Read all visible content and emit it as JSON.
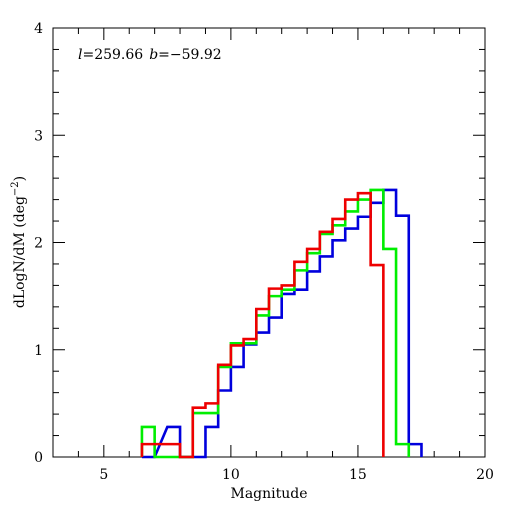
{
  "chart_data": {
    "type": "line",
    "style": "step histogram",
    "annotation": {
      "l_symbol": "l",
      "l_value": "=259.66",
      "b_symbol": "b",
      "b_value": "=−59.92"
    },
    "xlabel": "Magnitude",
    "ylabel_prefix": "dLogN/dM (deg",
    "ylabel_exponent": "−2",
    "ylabel_suffix": ")",
    "xlim": [
      3,
      20
    ],
    "ylim": [
      0,
      4
    ],
    "x_ticks": [
      5,
      10,
      15,
      20
    ],
    "x_tick_labels": [
      "5",
      "10",
      "15",
      "20"
    ],
    "y_ticks": [
      0,
      1,
      2,
      3,
      4
    ],
    "y_tick_labels": [
      "0",
      "1",
      "2",
      "3",
      "4"
    ],
    "grid": false,
    "legend": "none",
    "bin_width": 0.5,
    "series": [
      {
        "color": "#0000dd",
        "bin_starts": [
          6.5,
          7.5,
          8.0,
          8.5,
          9.0,
          9.5,
          10.0,
          10.5,
          11.0,
          11.5,
          12.0,
          12.5,
          13.0,
          13.5,
          14.0,
          14.5,
          15.0,
          15.5,
          16.0,
          16.5,
          17.0
        ],
        "values": [
          0.0,
          0.28,
          0.0,
          0.0,
          0.28,
          0.62,
          0.84,
          1.05,
          1.16,
          1.3,
          1.52,
          1.56,
          1.73,
          1.87,
          2.02,
          2.13,
          2.24,
          2.37,
          2.49,
          2.25,
          0.12
        ]
      },
      {
        "color": "#00ee00",
        "bin_starts": [
          6.5,
          7.0,
          7.5,
          8.0,
          8.5,
          9.0,
          9.5,
          10.0,
          10.5,
          11.0,
          11.5,
          12.0,
          12.5,
          13.0,
          13.5,
          14.0,
          14.5,
          15.0,
          15.5,
          16.0,
          16.5
        ],
        "values": [
          0.28,
          0.0,
          0.0,
          0.0,
          0.41,
          0.41,
          0.84,
          1.06,
          1.06,
          1.32,
          1.5,
          1.56,
          1.74,
          1.9,
          2.08,
          2.16,
          2.29,
          2.4,
          2.49,
          1.94,
          0.12
        ]
      },
      {
        "color": "#ee0000",
        "bin_starts": [
          6.5,
          7.0,
          7.5,
          8.0,
          8.5,
          9.0,
          9.5,
          10.0,
          10.5,
          11.0,
          11.5,
          12.0,
          12.5,
          13.0,
          13.5,
          14.0,
          14.5,
          15.0,
          15.5
        ],
        "values": [
          0.12,
          0.12,
          0.12,
          0.0,
          0.46,
          0.5,
          0.86,
          1.04,
          1.1,
          1.38,
          1.57,
          1.6,
          1.82,
          1.94,
          2.1,
          2.22,
          2.4,
          2.46,
          1.79
        ]
      }
    ]
  }
}
